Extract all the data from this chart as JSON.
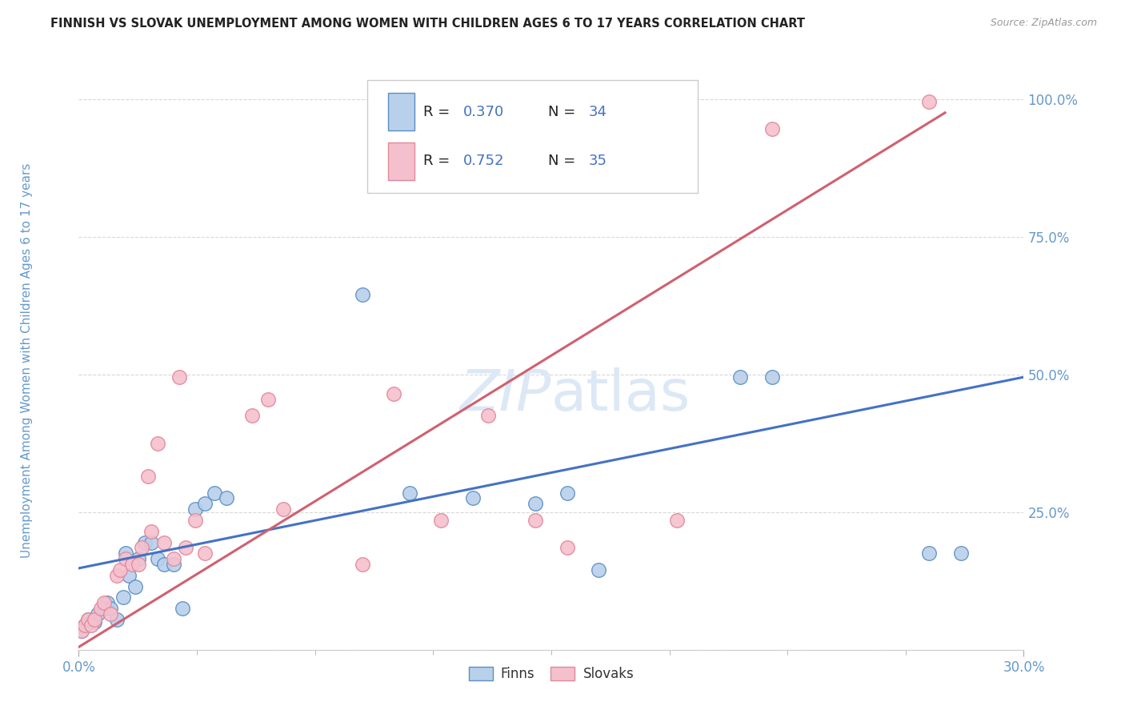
{
  "title": "FINNISH VS SLOVAK UNEMPLOYMENT AMONG WOMEN WITH CHILDREN AGES 6 TO 17 YEARS CORRELATION CHART",
  "source": "Source: ZipAtlas.com",
  "ylabel": "Unemployment Among Women with Children Ages 6 to 17 years",
  "legend_finn_r": "0.370",
  "legend_finn_n": "34",
  "legend_slovak_r": "0.752",
  "legend_slovak_n": "35",
  "legend_finn_label": "Finns",
  "legend_slovak_label": "Slovaks",
  "xlim": [
    0.0,
    0.3
  ],
  "ylim": [
    0.0,
    1.05
  ],
  "yticks": [
    0.0,
    0.25,
    0.5,
    0.75,
    1.0
  ],
  "ytick_labels": [
    "",
    "25.0%",
    "50.0%",
    "75.0%",
    "100.0%"
  ],
  "xticks": [
    0.0,
    0.3
  ],
  "xtick_labels": [
    "0.0%",
    "30.0%"
  ],
  "background_color": "#ffffff",
  "grid_color": "#d8d8d8",
  "finn_color": "#b8d0ea",
  "slovak_color": "#f5c0ce",
  "finn_edge_color": "#5b8ec4",
  "slovak_edge_color": "#e08898",
  "finn_line_color": "#4472c4",
  "slovak_line_color": "#d06070",
  "title_color": "#222222",
  "axis_label_color": "#6699cc",
  "tick_color": "#6699cc",
  "watermark_color": "#dce8f5",
  "finns_x": [
    0.001,
    0.002,
    0.003,
    0.005,
    0.006,
    0.008,
    0.009,
    0.01,
    0.012,
    0.014,
    0.015,
    0.016,
    0.018,
    0.019,
    0.021,
    0.023,
    0.025,
    0.027,
    0.03,
    0.033,
    0.037,
    0.04,
    0.043,
    0.047,
    0.09,
    0.105,
    0.125,
    0.145,
    0.155,
    0.165,
    0.21,
    0.22,
    0.27,
    0.28
  ],
  "finns_y": [
    0.035,
    0.045,
    0.055,
    0.05,
    0.065,
    0.075,
    0.085,
    0.075,
    0.055,
    0.095,
    0.175,
    0.135,
    0.115,
    0.165,
    0.195,
    0.195,
    0.165,
    0.155,
    0.155,
    0.075,
    0.255,
    0.265,
    0.285,
    0.275,
    0.645,
    0.285,
    0.275,
    0.265,
    0.285,
    0.145,
    0.495,
    0.495,
    0.175,
    0.175
  ],
  "slovaks_x": [
    0.001,
    0.002,
    0.003,
    0.004,
    0.005,
    0.007,
    0.008,
    0.01,
    0.012,
    0.013,
    0.015,
    0.017,
    0.019,
    0.02,
    0.022,
    0.023,
    0.025,
    0.027,
    0.03,
    0.032,
    0.034,
    0.037,
    0.04,
    0.055,
    0.06,
    0.065,
    0.09,
    0.1,
    0.115,
    0.13,
    0.145,
    0.155,
    0.19,
    0.22,
    0.27
  ],
  "slovaks_y": [
    0.035,
    0.045,
    0.055,
    0.045,
    0.055,
    0.075,
    0.085,
    0.065,
    0.135,
    0.145,
    0.165,
    0.155,
    0.155,
    0.185,
    0.315,
    0.215,
    0.375,
    0.195,
    0.165,
    0.495,
    0.185,
    0.235,
    0.175,
    0.425,
    0.455,
    0.255,
    0.155,
    0.465,
    0.235,
    0.425,
    0.235,
    0.185,
    0.235,
    0.945,
    0.995
  ],
  "finn_line_x": [
    0.0,
    0.3
  ],
  "finn_line_y": [
    0.148,
    0.495
  ],
  "slovak_line_x": [
    0.0,
    0.275
  ],
  "slovak_line_y": [
    0.005,
    0.975
  ]
}
